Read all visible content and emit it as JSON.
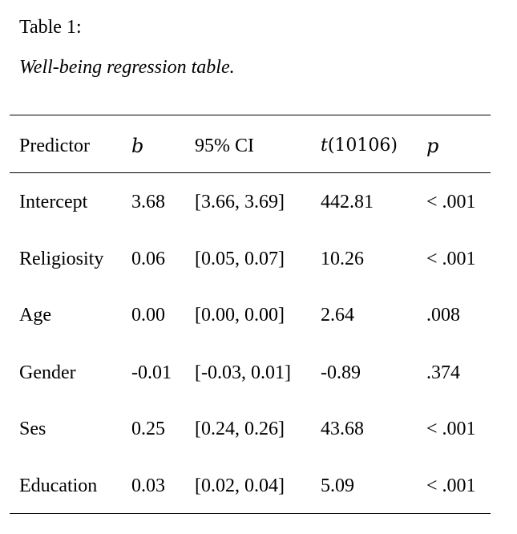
{
  "caption": {
    "label": "Table 1:",
    "title": "Well-being regression table."
  },
  "table": {
    "headers": {
      "predictor": "Predictor",
      "b": "b",
      "ci": "95% CI",
      "t_var": "t",
      "t_df": "(10106)",
      "p": "p"
    },
    "rows": [
      {
        "predictor": "Intercept",
        "b": "3.68",
        "ci": "[3.66, 3.69]",
        "t": "442.81",
        "p": "< .001"
      },
      {
        "predictor": "Religiosity",
        "b": "0.06",
        "ci": "[0.05, 0.07]",
        "t": "10.26",
        "p": "< .001"
      },
      {
        "predictor": "Age",
        "b": "0.00",
        "ci": "[0.00, 0.00]",
        "t": "2.64",
        "p": ".008"
      },
      {
        "predictor": "Gender",
        "b": "-0.01",
        "ci": "[-0.03, 0.01]",
        "t": "-0.89",
        "p": ".374"
      },
      {
        "predictor": "Ses",
        "b": "0.25",
        "ci": "[0.24, 0.26]",
        "t": "43.68",
        "p": "< .001"
      },
      {
        "predictor": "Education",
        "b": "0.03",
        "ci": "[0.02, 0.04]",
        "t": "5.09",
        "p": "< .001"
      }
    ]
  }
}
